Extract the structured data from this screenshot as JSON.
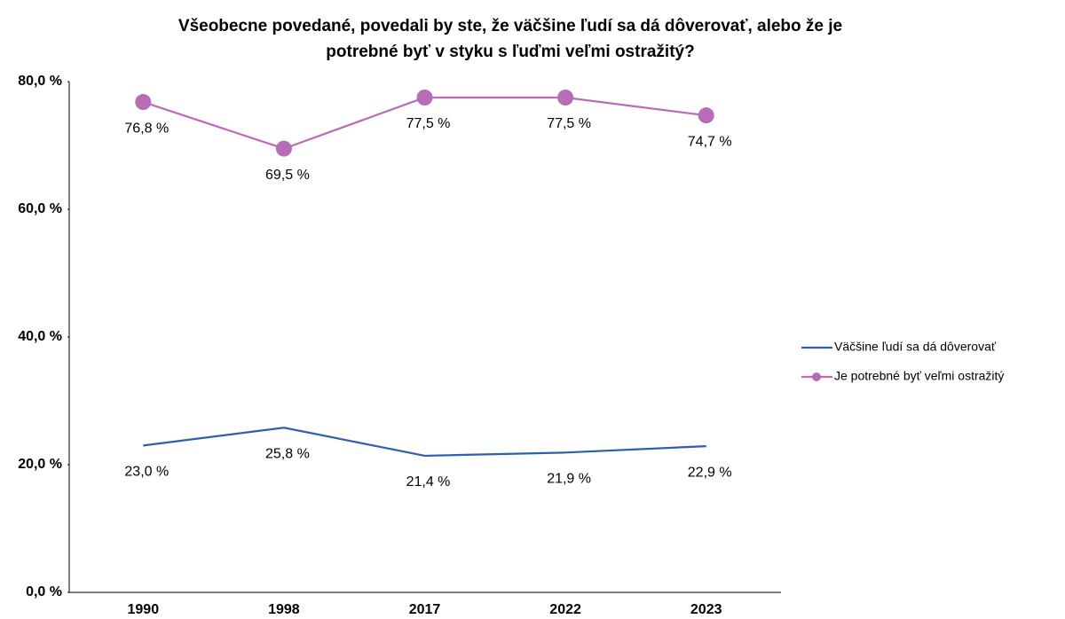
{
  "chart_data": {
    "type": "line",
    "title": [
      "Všeobecne povedané, povedali by ste, že väčšine ľudí sa dá dôverovať, alebo že je",
      "potrebné byť v styku s ľuďmi veľmi ostražitý?"
    ],
    "categories": [
      "1990",
      "1998",
      "2017",
      "2022",
      "2023"
    ],
    "series": [
      {
        "name": "Väčšine ľudí sa dá dôverovať",
        "color": "#2e5fa8",
        "marker": false,
        "values": [
          23.0,
          25.8,
          21.4,
          21.9,
          22.9
        ],
        "value_labels": [
          "23,0 %",
          "25,8 %",
          "21,4 %",
          "21,9 %",
          "22,9 %"
        ]
      },
      {
        "name": "Je potrebné byť veľmi ostražitý",
        "color": "#b86cb8",
        "marker": true,
        "values": [
          76.8,
          69.5,
          77.5,
          77.5,
          74.7
        ],
        "value_labels": [
          "76,8 %",
          "69,5 %",
          "77,5 %",
          "77,5 %",
          "74,7 %"
        ]
      }
    ],
    "ylim": [
      0,
      80
    ],
    "yticks": [
      {
        "value": 0,
        "label": "0,0 %"
      },
      {
        "value": 20,
        "label": "20,0 %"
      },
      {
        "value": 40,
        "label": "40,0 %"
      },
      {
        "value": 60,
        "label": "60,0 %"
      },
      {
        "value": 80,
        "label": "80,0 %"
      }
    ],
    "grid": false,
    "legend": "right"
  }
}
